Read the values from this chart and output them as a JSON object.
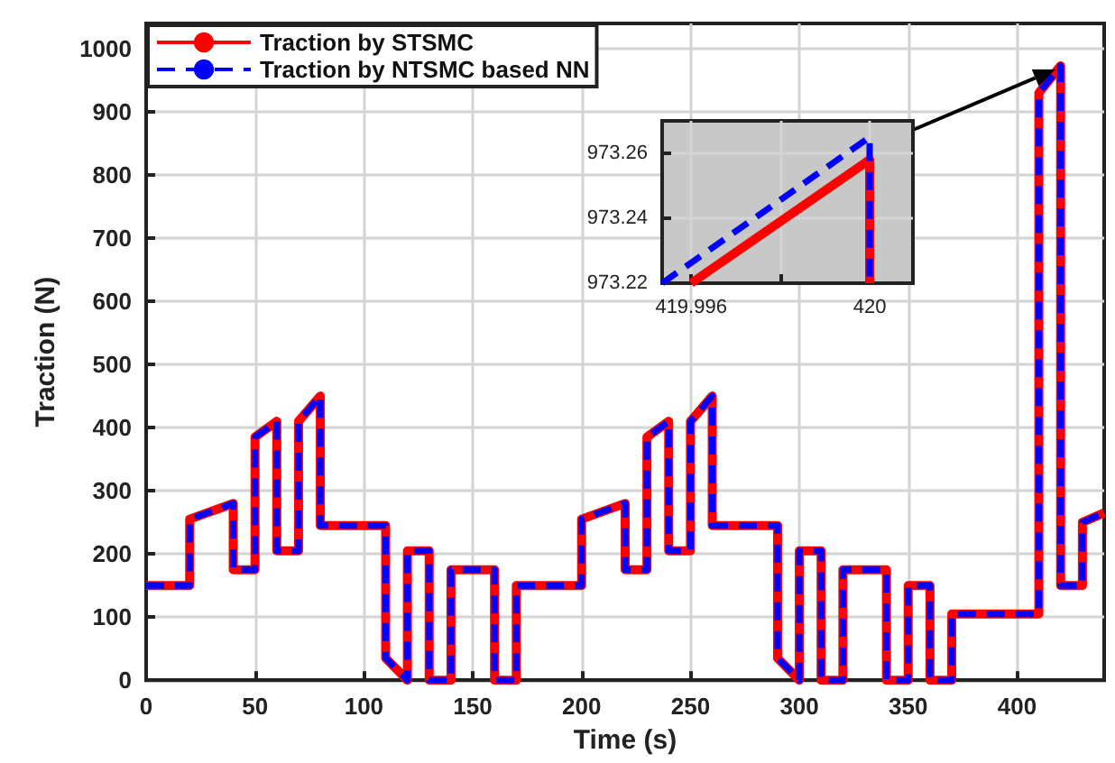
{
  "chart_data": [
    {
      "type": "line",
      "xlabel": "Time (s)",
      "ylabel": "Traction (N)",
      "xlim": [
        0,
        440
      ],
      "xticks": [
        0,
        50,
        100,
        150,
        200,
        250,
        300,
        350,
        400
      ],
      "ylim": [
        0,
        1040
      ],
      "yticks": [
        0,
        100,
        200,
        300,
        400,
        500,
        600,
        700,
        800,
        900,
        1000
      ],
      "grid": true,
      "legend": "top left",
      "marker": "none",
      "series": [
        {
          "name": "Traction by STSMC",
          "color": "#ff0000",
          "line_style": "solid",
          "x": [
            0,
            20,
            20,
            40,
            40,
            50,
            50,
            60,
            60,
            70,
            70,
            80,
            80,
            110,
            110,
            120,
            120,
            130,
            130,
            140,
            140,
            160,
            160,
            170,
            170,
            200,
            200,
            220,
            220,
            230,
            230,
            240,
            240,
            250,
            250,
            260,
            260,
            290,
            290,
            300,
            300,
            310,
            310,
            320,
            320,
            340,
            340,
            350,
            350,
            360,
            360,
            370,
            370,
            410,
            410,
            420,
            420,
            430,
            430,
            440
          ],
          "values": [
            150,
            150,
            255,
            280,
            175,
            175,
            385,
            410,
            205,
            205,
            410,
            450,
            245,
            245,
            35,
            0,
            205,
            205,
            0,
            0,
            175,
            175,
            0,
            0,
            150,
            150,
            255,
            280,
            175,
            175,
            385,
            410,
            205,
            205,
            410,
            450,
            245,
            245,
            35,
            0,
            205,
            205,
            0,
            0,
            175,
            175,
            0,
            0,
            150,
            150,
            0,
            0,
            105,
            105,
            930,
            973,
            150,
            150,
            250,
            265
          ]
        },
        {
          "name": "Traction by NTSMC based NN",
          "color": "#0000ff",
          "line_style": "dashed",
          "x": [
            0,
            20,
            20,
            40,
            40,
            50,
            50,
            60,
            60,
            70,
            70,
            80,
            80,
            110,
            110,
            120,
            120,
            130,
            130,
            140,
            140,
            160,
            160,
            170,
            170,
            200,
            200,
            220,
            220,
            230,
            230,
            240,
            240,
            250,
            250,
            260,
            260,
            290,
            290,
            300,
            300,
            310,
            310,
            320,
            320,
            340,
            340,
            350,
            350,
            360,
            360,
            370,
            370,
            410,
            410,
            420,
            420,
            430,
            430,
            440
          ],
          "values": [
            150,
            150,
            255,
            280,
            175,
            175,
            385,
            410,
            205,
            205,
            410,
            450,
            245,
            245,
            35,
            0,
            205,
            205,
            0,
            0,
            175,
            175,
            0,
            0,
            150,
            150,
            255,
            280,
            175,
            175,
            385,
            410,
            205,
            205,
            410,
            450,
            245,
            245,
            35,
            0,
            205,
            205,
            0,
            0,
            175,
            175,
            0,
            0,
            150,
            150,
            0,
            0,
            105,
            105,
            930,
            973,
            150,
            150,
            250,
            265
          ]
        }
      ]
    },
    {
      "type": "line",
      "xlim": [
        419.99535,
        420.00097
      ],
      "xticks": [
        419.996,
        {
          "value": 419.998,
          "label": null
        },
        420
      ],
      "ylim": [
        973.22,
        973.27
      ],
      "yticks": [
        973.22,
        973.24,
        973.26
      ],
      "grid": true,
      "marker": "none",
      "legend": false,
      "series": [
        {
          "color": "#ff0000",
          "line_style": "solid",
          "x": [
            419.996,
            420,
            420
          ],
          "values": [
            973.22,
            973.258,
            973.22
          ]
        },
        {
          "color": "#0000ff",
          "line_style": "dashed",
          "x": [
            419.99535,
            420,
            420
          ],
          "values": [
            973.22,
            973.265,
            973.22
          ]
        }
      ]
    }
  ]
}
